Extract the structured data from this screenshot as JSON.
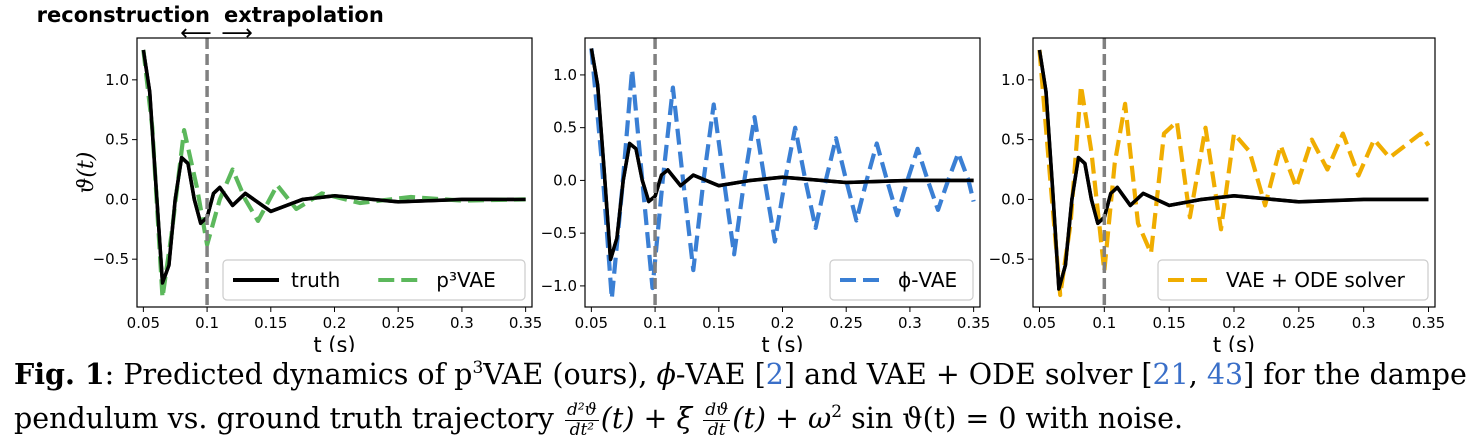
{
  "header": {
    "left_label": "reconstruction",
    "right_label": "extrapolation",
    "left_arrow": "⟵",
    "right_arrow": "⟶"
  },
  "colors": {
    "truth": "#000000",
    "p3vae": "#5cb85c",
    "phivae": "#3a7fd4",
    "vaeode": "#f0ad00",
    "divider": "#808080"
  },
  "chart_data": [
    {
      "type": "line",
      "xlabel": "t (s)",
      "ylabel": "ϑ(t)",
      "xlim": [
        0.045,
        0.355
      ],
      "ylim": [
        -0.9,
        1.35
      ],
      "xticks": [
        0.05,
        0.1,
        0.15,
        0.2,
        0.25,
        0.3,
        0.35
      ],
      "xtick_labels": [
        "0.05",
        "0.1",
        "0.15",
        "0.2",
        "0.25",
        "0.3",
        "0.35"
      ],
      "yticks": [
        -0.5,
        0.0,
        0.5,
        1.0
      ],
      "ytick_labels": [
        "−0.5",
        "0.0",
        "0.5",
        "1.0"
      ],
      "divider_x": 0.1,
      "legend_position": "lower-right",
      "series": [
        {
          "name": "truth",
          "color": "#000000",
          "dash": "solid",
          "x": [
            0.05,
            0.055,
            0.06,
            0.065,
            0.07,
            0.075,
            0.08,
            0.085,
            0.09,
            0.095,
            0.1,
            0.105,
            0.11,
            0.12,
            0.13,
            0.15,
            0.175,
            0.2,
            0.25,
            0.3,
            0.35
          ],
          "y": [
            1.25,
            0.9,
            0.1,
            -0.7,
            -0.55,
            0.0,
            0.35,
            0.3,
            0.0,
            -0.2,
            -0.15,
            0.05,
            0.1,
            -0.05,
            0.05,
            -0.1,
            0.0,
            0.03,
            -0.02,
            0.0,
            0.0
          ]
        },
        {
          "name": "p³VAE",
          "color": "#5cb85c",
          "dash": "dashed",
          "x": [
            0.05,
            0.057,
            0.065,
            0.072,
            0.082,
            0.092,
            0.1,
            0.11,
            0.12,
            0.13,
            0.14,
            0.155,
            0.17,
            0.19,
            0.22,
            0.26,
            0.3,
            0.35
          ],
          "y": [
            1.25,
            0.6,
            -0.82,
            -0.3,
            0.58,
            0.1,
            -0.38,
            0.0,
            0.25,
            0.0,
            -0.18,
            0.12,
            -0.08,
            0.05,
            -0.03,
            0.02,
            -0.01,
            0.0
          ]
        }
      ]
    },
    {
      "type": "line",
      "xlabel": "t (s)",
      "ylabel": "",
      "xlim": [
        0.045,
        0.355
      ],
      "ylim": [
        -1.2,
        1.35
      ],
      "xticks": [
        0.05,
        0.1,
        0.15,
        0.2,
        0.25,
        0.3,
        0.35
      ],
      "xtick_labels": [
        "0.05",
        "0.1",
        "0.15",
        "0.2",
        "0.25",
        "0.3",
        "0.35"
      ],
      "yticks": [
        -1.0,
        -0.5,
        0.0,
        0.5,
        1.0
      ],
      "ytick_labels": [
        "−1.0",
        "−0.5",
        "0.0",
        "0.5",
        "1.0"
      ],
      "divider_x": 0.1,
      "legend_position": "lower-right",
      "series": [
        {
          "name": "truth",
          "color": "#000000",
          "dash": "solid",
          "x": [
            0.05,
            0.055,
            0.06,
            0.065,
            0.07,
            0.075,
            0.08,
            0.085,
            0.09,
            0.095,
            0.1,
            0.105,
            0.11,
            0.12,
            0.13,
            0.15,
            0.175,
            0.2,
            0.25,
            0.3,
            0.35
          ],
          "y": [
            1.25,
            0.9,
            0.1,
            -0.75,
            -0.55,
            0.0,
            0.35,
            0.3,
            0.0,
            -0.2,
            -0.15,
            0.05,
            0.1,
            -0.05,
            0.05,
            -0.05,
            0.0,
            0.03,
            -0.02,
            0.0,
            0.0
          ]
        },
        {
          "name": "ϕ-VAE",
          "color": "#3a7fd4",
          "dash": "dashed",
          "x": [
            0.05,
            0.058,
            0.066,
            0.074,
            0.082,
            0.09,
            0.098,
            0.106,
            0.114,
            0.122,
            0.13,
            0.138,
            0.146,
            0.154,
            0.162,
            0.17,
            0.178,
            0.186,
            0.194,
            0.202,
            0.21,
            0.218,
            0.226,
            0.234,
            0.242,
            0.25,
            0.258,
            0.266,
            0.274,
            0.282,
            0.29,
            0.298,
            0.306,
            0.314,
            0.322,
            0.33,
            0.338,
            0.346,
            0.35
          ],
          "y": [
            1.25,
            0.2,
            -1.12,
            -0.1,
            1.05,
            0.0,
            -1.02,
            0.0,
            0.88,
            0.0,
            -0.85,
            0.0,
            0.72,
            0.0,
            -0.7,
            0.0,
            0.6,
            0.0,
            -0.58,
            0.0,
            0.5,
            0.0,
            -0.45,
            0.0,
            0.4,
            0.0,
            -0.38,
            0.0,
            0.35,
            0.0,
            -0.33,
            0.0,
            0.3,
            0.0,
            -0.28,
            0.0,
            0.26,
            0.0,
            -0.2
          ]
        }
      ]
    },
    {
      "type": "line",
      "xlabel": "t (s)",
      "ylabel": "",
      "xlim": [
        0.045,
        0.355
      ],
      "ylim": [
        -0.9,
        1.35
      ],
      "xticks": [
        0.05,
        0.1,
        0.15,
        0.2,
        0.25,
        0.3,
        0.35
      ],
      "xtick_labels": [
        "0.05",
        "0.1",
        "0.15",
        "0.2",
        "0.25",
        "0.3",
        "0.35"
      ],
      "yticks": [
        -0.5,
        0.0,
        0.5,
        1.0
      ],
      "ytick_labels": [
        "−0.5",
        "0.0",
        "0.5",
        "1.0"
      ],
      "divider_x": 0.1,
      "legend_position": "lower-right",
      "series": [
        {
          "name": "truth",
          "color": "#000000",
          "dash": "solid",
          "x": [
            0.05,
            0.055,
            0.06,
            0.065,
            0.07,
            0.075,
            0.08,
            0.085,
            0.09,
            0.095,
            0.1,
            0.105,
            0.11,
            0.12,
            0.13,
            0.15,
            0.175,
            0.2,
            0.25,
            0.3,
            0.35
          ],
          "y": [
            1.25,
            0.9,
            0.1,
            -0.75,
            -0.55,
            0.0,
            0.35,
            0.3,
            0.0,
            -0.2,
            -0.15,
            0.05,
            0.1,
            -0.05,
            0.05,
            -0.05,
            0.0,
            0.03,
            -0.02,
            0.0,
            0.0
          ]
        },
        {
          "name": "VAE + ODE solver",
          "color": "#f0ad00",
          "dash": "dashed",
          "x": [
            0.05,
            0.058,
            0.066,
            0.074,
            0.082,
            0.09,
            0.1,
            0.108,
            0.116,
            0.126,
            0.136,
            0.146,
            0.156,
            0.166,
            0.178,
            0.19,
            0.2,
            0.212,
            0.224,
            0.236,
            0.248,
            0.26,
            0.272,
            0.284,
            0.296,
            0.308,
            0.32,
            0.332,
            0.344,
            0.35
          ],
          "y": [
            1.25,
            0.2,
            -0.8,
            -0.2,
            0.95,
            0.4,
            -0.6,
            0.3,
            0.8,
            -0.2,
            -0.45,
            0.55,
            0.65,
            -0.15,
            0.6,
            -0.25,
            0.55,
            0.4,
            -0.05,
            0.45,
            0.1,
            0.5,
            0.25,
            0.55,
            0.2,
            0.5,
            0.35,
            0.45,
            0.55,
            0.45
          ]
        }
      ]
    }
  ],
  "caption": {
    "fig_label": "Fig. 1",
    "line1_a": ": Predicted dynamics of p",
    "line1_sup": "3",
    "line1_b": "VAE (ours), ",
    "phi": "ϕ",
    "line1_c": "-VAE [",
    "cite1": "2",
    "line1_d": "] and VAE + ODE solver [",
    "cite2": "21",
    "line1_e": ", ",
    "cite3": "43",
    "line1_f": "] for the damped",
    "line2_a": "pendulum vs. ground truth trajectory ",
    "eq_num1": "d²ϑ",
    "eq_den1": "dt²",
    "eq_mid1": "(t) + ξ ",
    "eq_num2": "dϑ",
    "eq_den2": "dt",
    "eq_mid2": "(t) + ω",
    "eq_sup": "2",
    "eq_end": " sin ϑ(t) = 0 with noise."
  }
}
